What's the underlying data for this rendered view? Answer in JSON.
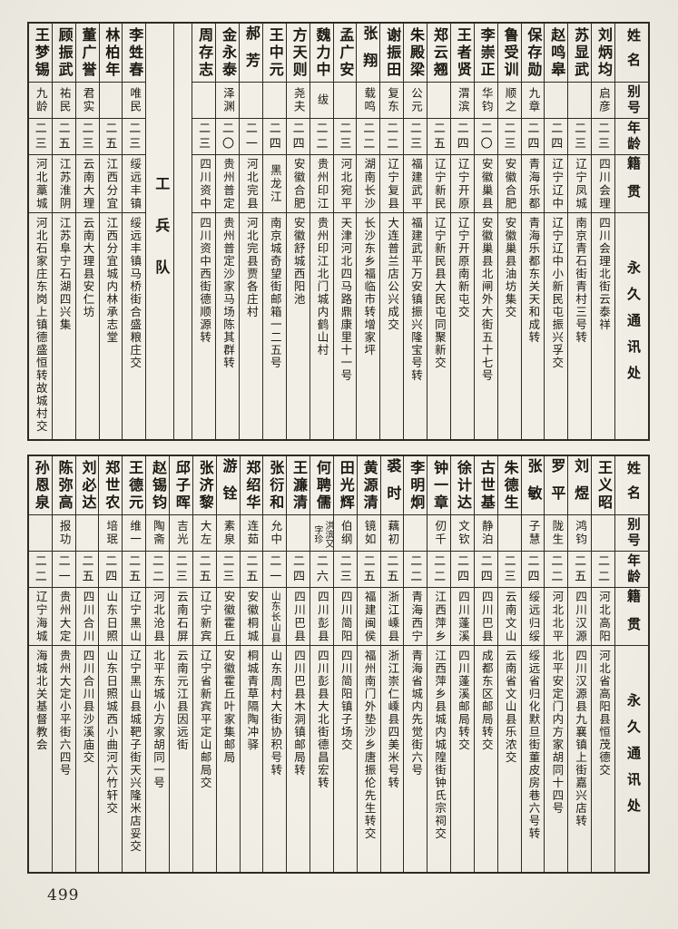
{
  "page": {
    "number": "499"
  },
  "headers": {
    "name": "姓名",
    "alias": "别号",
    "age": "年龄",
    "native": "籍贯",
    "address": "永久通讯处"
  },
  "divider": {
    "label": "工兵队",
    "after_index": 17
  },
  "top_entries": [
    {
      "name": "刘炳均",
      "alias": "启彦",
      "age": "二三",
      "native": "四川会理",
      "address": "四川会理北街云泰祥"
    },
    {
      "name": "苏显武",
      "alias": "",
      "age": "二三",
      "native": "辽宁凤城",
      "address": "南京青石街青村三号转"
    },
    {
      "name": "赵鸣皋",
      "alias": "",
      "age": "二四",
      "native": "辽宁辽中",
      "address": "辽宁辽中小新民屯振兴孚交"
    },
    {
      "name": "保存勋",
      "alias": "九章",
      "age": "二四",
      "native": "青海乐都",
      "address": "青海乐都东关天和成转"
    },
    {
      "name": "鲁受训",
      "alias": "顺之",
      "age": "二三",
      "native": "安徽合肥",
      "address": "安徽巢县油坊集交"
    },
    {
      "name": "李崇正",
      "alias": "华钧",
      "age": "二〇",
      "native": "安徽巢县",
      "address": "安徽巢县北闸外大街五十七号"
    },
    {
      "name": "王者贤",
      "alias": "渭滨",
      "age": "二四",
      "native": "辽宁开原",
      "address": "辽宁开原南新屯交"
    },
    {
      "name": "郑云翘",
      "alias": "",
      "age": "二五",
      "native": "辽宁新民",
      "address": "辽宁新民县大民屯同聚新交"
    },
    {
      "name": "朱殿梁",
      "alias": "公元",
      "age": "二三",
      "native": "福建武平",
      "address": "福建武平万安镇振兴隆宝号转"
    },
    {
      "name": "谢振田",
      "alias": "复东",
      "age": "二二",
      "native": "辽宁复县",
      "address": "大连普兰店公兴成交"
    },
    {
      "name": "张翔",
      "alias": "载鸣",
      "age": "二二",
      "native": "湖南长沙",
      "address": "长沙东乡福临市转增家坪"
    },
    {
      "name": "孟广安",
      "alias": "",
      "age": "二三",
      "native": "河北宛平",
      "address": "天津河北四马路鼎康里十一号"
    },
    {
      "name": "魏力中",
      "alias": "绂",
      "age": "二二",
      "native": "贵州印江",
      "address": "贵州印江北门城内鹤山村"
    },
    {
      "name": "方天则",
      "alias": "尧夫",
      "age": "二四",
      "native": "安徽合肥",
      "address": "安徽舒城西阳池"
    },
    {
      "name": "王中元",
      "alias": "",
      "age": "二四",
      "native": "黑龙江",
      "address": "南京城奇望街邮箱一二五号"
    },
    {
      "name": "郝芳",
      "alias": "",
      "age": "二一",
      "native": "河北完县",
      "address": "河北完县贾各庄村"
    },
    {
      "name": "金永泰",
      "alias": "泽渊",
      "age": "二〇",
      "native": "贵州普定",
      "address": "贵州普定沙家马场陈其群转"
    },
    {
      "name": "周存志",
      "alias": "",
      "age": "二三",
      "native": "四川资中",
      "address": "四川资中西街德顺源转"
    },
    {
      "name": "李甡春",
      "alias": "唯民",
      "age": "二三",
      "native": "绥远丰镇",
      "address": "绥远丰镇马桥街合盛粮庄交"
    },
    {
      "name": "林柏年",
      "alias": "",
      "age": "二五",
      "native": "江西分宜",
      "address": "江西分宜城内林承志堂"
    },
    {
      "name": "董广誉",
      "alias": "君实",
      "age": "二三",
      "native": "云南大理",
      "address": "云南大理县安仁坊"
    },
    {
      "name": "顾振武",
      "alias": "祐民",
      "age": "二五",
      "native": "江苏淮阴",
      "address": "江苏阜宁石湖四兴集"
    },
    {
      "name": "王梦锡",
      "alias": "九龄",
      "age": "二三",
      "native": "河北藁城",
      "address": "河北石家庄东岗上镇德盛恒转故城村交"
    }
  ],
  "bottom_entries": [
    {
      "name": "王义昭",
      "alias": "",
      "age": "二二",
      "native": "河北高阳",
      "address": "河北省高阳县恒茂德交"
    },
    {
      "name": "刘煜",
      "alias": "鸿钧",
      "age": "二五",
      "native": "四川汉源",
      "address": "四川汉源县九襄镇上街嘉兴店转"
    },
    {
      "name": "罗平",
      "alias": "陇生",
      "age": "二二",
      "native": "河北北平",
      "address": "北平安定门内方家胡同十四号"
    },
    {
      "name": "张敏",
      "alias": "子慧",
      "age": "二四",
      "native": "绥远归绥",
      "address": "绥远省归化默旦街董皮房巷六号转"
    },
    {
      "name": "朱德生",
      "alias": "",
      "age": "二三",
      "native": "云南文山",
      "address": "云南省文山县乐浓交"
    },
    {
      "name": "古世基",
      "alias": "静泊",
      "age": "二四",
      "native": "四川巴县",
      "address": "成都东区邮局转交"
    },
    {
      "name": "徐计达",
      "alias": "文钦",
      "age": "二四",
      "native": "四川蓬溪",
      "address": "四川蓬溪邮局转交"
    },
    {
      "name": "钟一章",
      "alias": "仞千",
      "age": "二二",
      "native": "江西萍乡",
      "address": "江西萍乡县城内城隍街钟氏宗祠交"
    },
    {
      "name": "李明炯",
      "alias": "",
      "age": "二二",
      "native": "青海西宁",
      "address": "青海省城内先觉街六号"
    },
    {
      "name": "裘时",
      "alias": "藕初",
      "age": "二五",
      "native": "浙江嵊县",
      "address": "浙江崇仁嵊县四美米号转"
    },
    {
      "name": "黄源清",
      "alias": "镜如",
      "age": "二五",
      "native": "福建闽侯",
      "address": "福州南门外垫沙乡唐振伦先生转交"
    },
    {
      "name": "田光辉",
      "alias": "伯纲",
      "age": "二三",
      "native": "四川简阳",
      "address": "四川简阳镇子场交"
    },
    {
      "name": "何聘儒",
      "alias": "洪滨又字珍",
      "age": "二六",
      "native": "四川彭县",
      "address": "四川彭县大北街德昌宏转"
    },
    {
      "name": "王濂清",
      "alias": "",
      "age": "二四",
      "native": "四川巴县",
      "address": "四川巴县木洞镇邮局转"
    },
    {
      "name": "张衍和",
      "alias": "允中",
      "age": "二一",
      "native": "山东长山县",
      "address": "山东周村大街协积号转"
    },
    {
      "name": "郑绍华",
      "alias": "连茹",
      "age": "二五",
      "native": "安徽桐城",
      "address": "桐城青草隔陶冲驿"
    },
    {
      "name": "游铨",
      "alias": "素泉",
      "age": "二三",
      "native": "安徽霍丘",
      "address": "安徽霍丘叶家集邮局"
    },
    {
      "name": "张济黎",
      "alias": "大左",
      "age": "二五",
      "native": "辽宁新宾",
      "address": "辽宁省新宾平定山邮局交"
    },
    {
      "name": "邱子晖",
      "alias": "吉光",
      "age": "二三",
      "native": "云南石屏",
      "address": "云南元江县因远街"
    },
    {
      "name": "赵锡钧",
      "alias": "陶斋",
      "age": "二二",
      "native": "河北沧县",
      "address": "北平东城小方家胡同一号"
    },
    {
      "name": "王德元",
      "alias": "维一",
      "age": "二五",
      "native": "辽宁黑山",
      "address": "辽宁黑山县城靶子街天兴隆米店妥交"
    },
    {
      "name": "郑世农",
      "alias": "培珉",
      "age": "二四",
      "native": "山东日照",
      "address": "山东日照城西小曲河六竹轩交"
    },
    {
      "name": "刘必达",
      "alias": "",
      "age": "二五",
      "native": "四川合川",
      "address": "四川合川县沙溪庙交"
    },
    {
      "name": "陈弥高",
      "alias": "报功",
      "age": "二一",
      "native": "贵州大定",
      "address": "贵州大定小平街六四号"
    },
    {
      "name": "孙恩泉",
      "alias": "",
      "age": "二二",
      "native": "辽宁海城",
      "address": "海城北关基督教会"
    }
  ]
}
